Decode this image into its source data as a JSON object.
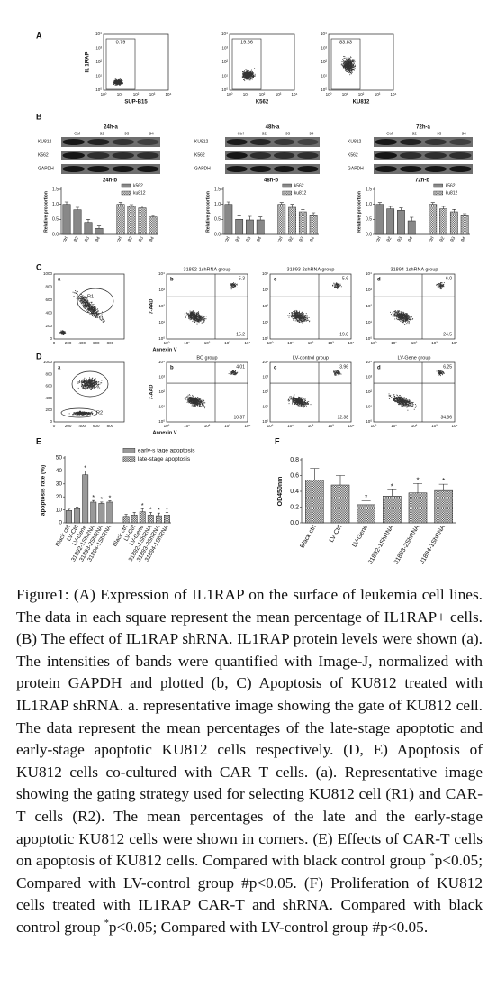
{
  "panel_labels": [
    "A",
    "B",
    "C",
    "D",
    "E",
    "F"
  ],
  "flow_ticks": [
    "10⁰",
    "10¹",
    "10²",
    "10³",
    "10⁴"
  ],
  "gate_ticks": [
    "0",
    "200",
    "400",
    "600",
    "800",
    "1000"
  ],
  "panel_a": {
    "y_label": "IL 1RAP",
    "plots": [
      {
        "value": "0.79",
        "x_label": "SUP-B15"
      },
      {
        "value": "19.66",
        "x_label": "K562"
      },
      {
        "value": "83.83",
        "x_label": "KU812"
      }
    ]
  },
  "panel_b": {
    "row_labels": [
      "KU812",
      "K562",
      "GAPDH"
    ],
    "lanes": [
      "Ctrl",
      "92",
      "93",
      "94"
    ],
    "blots": [
      "24h-a",
      "48h-a",
      "72h-a"
    ]
  },
  "panel_c": {
    "gate": {
      "label": "a",
      "region": "R1"
    },
    "y_label": "7-AAD",
    "x_label": "Annexin V",
    "plots": [
      {
        "letter": "b",
        "title": "31892-1shRNA group",
        "upper": "5.3",
        "lower": "15.2"
      },
      {
        "letter": "c",
        "title": "31893-2shRNA group",
        "upper": "5.6",
        "lower": "19.8"
      },
      {
        "letter": "d",
        "title": "31894-1shRNA group",
        "upper": "6.0",
        "lower": "24.5"
      }
    ]
  },
  "panel_d": {
    "gate": {
      "label": "a",
      "regions": [
        "R1",
        "R2"
      ]
    },
    "y_label": "7-AAD",
    "x_label": "Annexin V",
    "plots": [
      {
        "letter": "b",
        "title": "BC group",
        "upper": "4.01",
        "lower": "10.37"
      },
      {
        "letter": "c",
        "title": "LV-control group",
        "upper": "3.96",
        "lower": "12.38"
      },
      {
        "letter": "d",
        "title": "LV-Gene group",
        "upper": "6.25",
        "lower": "34.36"
      }
    ]
  },
  "chart_data": [
    {
      "type": "bar",
      "title": "24h-b",
      "y_label": "Relative proportion",
      "categories": [
        "ctrl",
        "92",
        "93",
        "94"
      ],
      "ylim": [
        0,
        1.5
      ],
      "yticks": [
        {
          "value": 0,
          "label": "0.0"
        },
        0.5,
        {
          "value": 1,
          "label": "1.0"
        },
        1.5
      ],
      "legend": "upper right",
      "series": [
        {
          "name": "k562",
          "color": "#888888",
          "values": [
            1.0,
            0.82,
            0.4,
            0.2
          ],
          "errors": [
            0.08,
            0.08,
            0.1,
            0.08
          ]
        },
        {
          "name": "ku812",
          "color": "#555555",
          "pattern": "checker",
          "values": [
            1.0,
            0.93,
            0.88,
            0.58
          ],
          "errors": [
            0.06,
            0.06,
            0.07,
            0.05
          ]
        }
      ]
    },
    {
      "type": "bar",
      "title": "48h-b",
      "y_label": "Relative proportion",
      "categories": [
        "ctrl",
        "92",
        "93",
        "94"
      ],
      "ylim": [
        0,
        1.5
      ],
      "yticks": [
        {
          "value": 0,
          "label": "0.0"
        },
        0.5,
        {
          "value": 1,
          "label": "1.0"
        },
        1.5
      ],
      "legend": "upper right",
      "series": [
        {
          "name": "k562",
          "color": "#888888",
          "values": [
            1.0,
            0.5,
            0.48,
            0.48
          ],
          "errors": [
            0.08,
            0.12,
            0.12,
            0.1
          ]
        },
        {
          "name": "ku812",
          "color": "#555555",
          "pattern": "checker",
          "values": [
            1.0,
            0.9,
            0.75,
            0.62
          ],
          "errors": [
            0.06,
            0.1,
            0.08,
            0.1
          ]
        }
      ]
    },
    {
      "type": "bar",
      "title": "72h-b",
      "y_label": "Relative proportion",
      "categories": [
        "ctrl",
        "92",
        "93",
        "94"
      ],
      "ylim": [
        0,
        1.5
      ],
      "yticks": [
        {
          "value": 0,
          "label": "0.0"
        },
        0.5,
        {
          "value": 1,
          "label": "1.0"
        },
        1.5
      ],
      "legend": "upper right",
      "series": [
        {
          "name": "k562",
          "color": "#888888",
          "values": [
            1.0,
            0.85,
            0.8,
            0.45
          ],
          "errors": [
            0.06,
            0.08,
            0.08,
            0.12
          ]
        },
        {
          "name": "ku812",
          "color": "#555555",
          "pattern": "checker",
          "values": [
            1.0,
            0.85,
            0.75,
            0.62
          ],
          "errors": [
            0.06,
            0.08,
            0.08,
            0.07
          ]
        }
      ]
    },
    {
      "type": "bar",
      "y_label": "apoptosis rate (%)",
      "categories": [
        "Black ctrl",
        "LV-Ctrl",
        "LV-Gene",
        "31892-1ShRNA",
        "31893-2ShRNA",
        "31894-1ShRNA"
      ],
      "ylim": [
        0,
        50
      ],
      "yticks": [
        0,
        10,
        20,
        30,
        40,
        50
      ],
      "legend": "upper right",
      "series": [
        {
          "name": "early-s tage apoptosis",
          "color": "#999999",
          "values": [
            9.5,
            11,
            37,
            16,
            15,
            16
          ],
          "errors": [
            1,
            1.2,
            3,
            1.2,
            1,
            1
          ],
          "significance": [
            null,
            null,
            "*",
            "*",
            "*",
            "*"
          ]
        },
        {
          "name": "late-stage apoptosis",
          "color": "#444444",
          "pattern": "checker",
          "values": [
            5,
            6,
            8.5,
            6,
            5.5,
            6
          ],
          "errors": [
            1.5,
            2,
            2.5,
            2,
            2,
            2
          ],
          "significance": [
            null,
            null,
            "*",
            "*",
            "*",
            "*"
          ]
        }
      ]
    },
    {
      "type": "bar",
      "y_label": "OD450nm",
      "categories": [
        "Black ctrl",
        "LV-Ctrl",
        "LV-Gene",
        "31892-1ShRNA",
        "31893-2ShRNA",
        "31894-1ShRNA"
      ],
      "ylim": [
        0,
        0.8
      ],
      "yticks": [
        {
          "value": 0,
          "label": "0.0"
        },
        0.2,
        0.4,
        0.6,
        0.8
      ],
      "series": [
        {
          "color": "#444444",
          "pattern": "checker",
          "values": [
            0.54,
            0.48,
            0.23,
            0.34,
            0.38,
            0.41
          ],
          "errors": [
            0.15,
            0.12,
            0.05,
            0.08,
            0.12,
            0.08
          ],
          "significance": [
            null,
            null,
            "*",
            "*",
            "*",
            "*"
          ]
        }
      ]
    }
  ],
  "caption": {
    "label": "Figure1:",
    "text_1": " (A) Expression of IL1RAP on the surface of leukemia cell lines. The data in each square represent the mean percentage of IL1RAP+ cells. (B) The effect of IL1RAP shRNA. IL1RAP protein levels were shown (a). The intensities of bands were quantified with Image-J, normalized with protein GAPDH and plotted (b, C) Apoptosis of KU812 treated with IL1RAP shRNA. a. representative image showing the gate of KU812 cell. The data represent the mean percentages of the late-stage apoptotic and early-stage apoptotic KU812 cells respectively. (D, E) Apoptosis of KU812 cells co-cultured with CAR T cells. (a). Representative image showing the gating strategy used for selecting KU812 cell (R1) and CAR-T cells (R2). The mean percentages of the late and the early-stage apoptotic KU812 cells were shown in corners. (E) Effects of CAR-T cells on apoptosis of KU812 cells. Compared with black control group ",
    "sup_1": "*",
    "text_2": "p<0.05; Compared with LV-control group #p<0.05. (F) Proliferation of KU812 cells treated with IL1RAP CAR-T and shRNA. Compared with black control group ",
    "sup_2": "*",
    "text_3": "p<0.05; Compared with LV-control group #p<0.05."
  }
}
